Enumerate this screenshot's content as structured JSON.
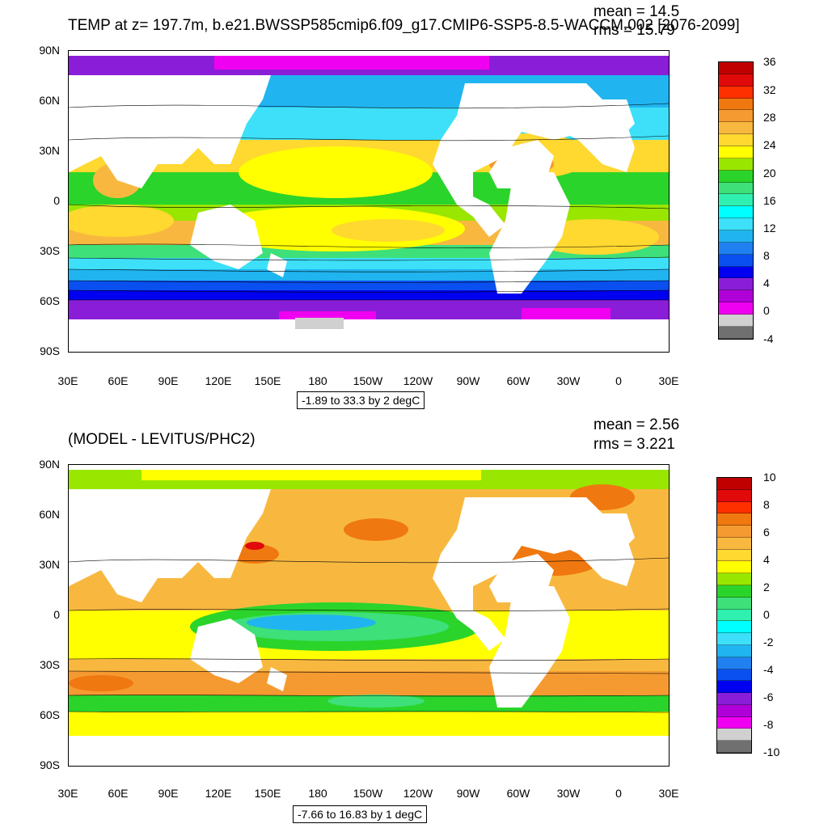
{
  "panels": [
    {
      "title": "TEMP at z= 197.7m, b.e21.BWSSP585cmip6.f09_g17.CMIP6-SSP5-8.5-WACCM.002 [2076-2099]",
      "mean_label": "mean = 14.5",
      "rms_label": "rms = 15.79",
      "range_label": "-1.89 to 33.3 by 2 degC",
      "lat_labels": [
        "90N",
        "60N",
        "30N",
        "0",
        "30S",
        "60S",
        "90S"
      ],
      "lon_labels": [
        "30E",
        "60E",
        "90E",
        "120E",
        "150E",
        "180",
        "150W",
        "120W",
        "90W",
        "60W",
        "30W",
        "0",
        "30E"
      ],
      "colorbar_labels": [
        "36",
        "32",
        "28",
        "24",
        "20",
        "16",
        "12",
        "8",
        "4",
        "0",
        "-4"
      ],
      "colorbar_colors": [
        "#c00000",
        "#e00a0a",
        "#ff3000",
        "#f07810",
        "#f59a30",
        "#f8b840",
        "#ffd830",
        "#ffff00",
        "#99e600",
        "#2ad42a",
        "#3ee07a",
        "#30f0b0",
        "#00ffff",
        "#3de0f8",
        "#20b4f0",
        "#2080f0",
        "#0a50f0",
        "#0000f0",
        "#8a1ed8",
        "#b000d8",
        "#f000f0",
        "#d0d0d0",
        "#707070"
      ]
    },
    {
      "title": "(MODEL - LEVITUS/PHC2)",
      "mean_label": "mean = 2.56",
      "rms_label": "rms = 3.221",
      "range_label": "-7.66 to 16.83 by 1 degC",
      "lat_labels": [
        "90N",
        "60N",
        "30N",
        "0",
        "30S",
        "60S",
        "90S"
      ],
      "lon_labels": [
        "30E",
        "60E",
        "90E",
        "120E",
        "150E",
        "180",
        "150W",
        "120W",
        "90W",
        "60W",
        "30W",
        "0",
        "30E"
      ],
      "colorbar_labels": [
        "10",
        "8",
        "6",
        "4",
        "2",
        "0",
        "-2",
        "-4",
        "-6",
        "-8",
        "-10"
      ],
      "colorbar_colors": [
        "#c00000",
        "#e00a0a",
        "#ff3000",
        "#f07810",
        "#f59a30",
        "#f8b840",
        "#ffd830",
        "#ffff00",
        "#99e600",
        "#2ad42a",
        "#3ee07a",
        "#30f0b0",
        "#00ffff",
        "#3de0f8",
        "#20b4f0",
        "#2080f0",
        "#0a50f0",
        "#0000f0",
        "#8a1ed8",
        "#b000d8",
        "#f000f0",
        "#d0d0d0",
        "#707070"
      ]
    }
  ]
}
